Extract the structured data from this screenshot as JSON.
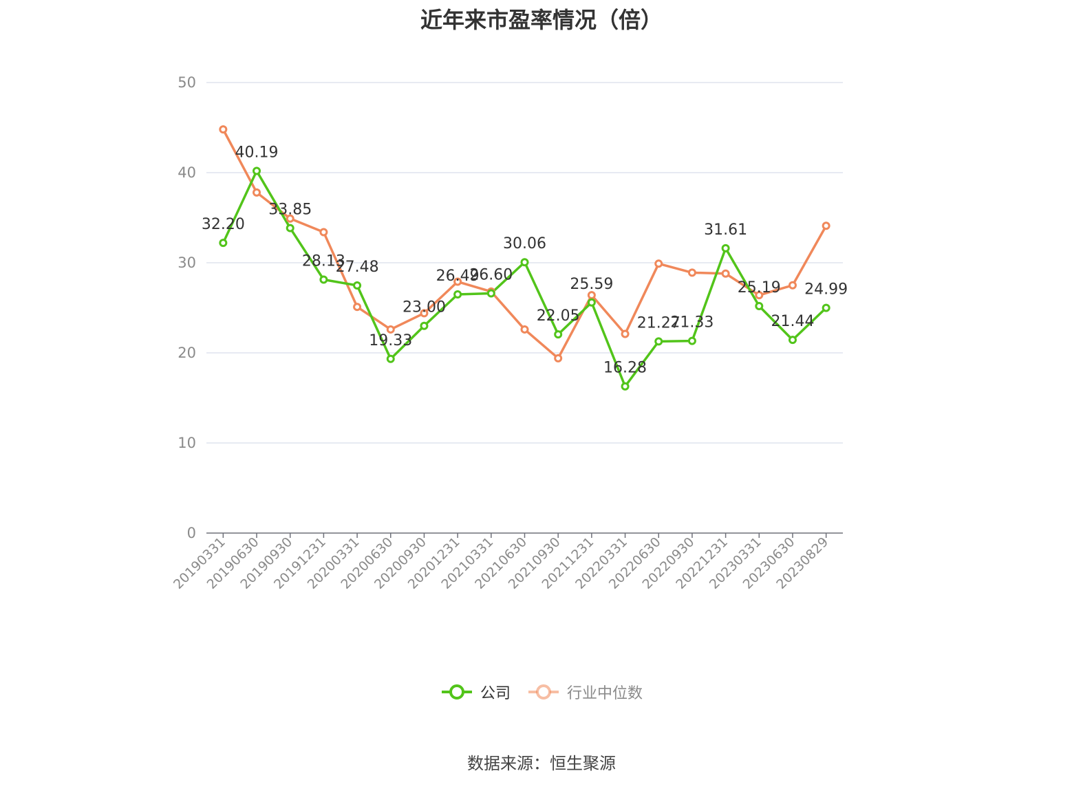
{
  "title": "近年来市盈率情况（倍）",
  "source": "数据来源：恒生聚源",
  "colors": {
    "company": "#52c41a",
    "industry": "#f0885a",
    "grid": "#dfe3ee",
    "axis": "#6e7079"
  },
  "legend": [
    {
      "name": "公司",
      "color": "#52c41a"
    },
    {
      "name": "行业中位数",
      "color": "#f0885a"
    }
  ],
  "chart_data": {
    "type": "line",
    "title": "近年来市盈率情况（倍）",
    "ylim": [
      0,
      50
    ],
    "yticks": [
      0,
      10,
      20,
      30,
      40,
      50
    ],
    "grid": true,
    "legend_position": "bottom",
    "categories": [
      "20190331",
      "20190630",
      "20190930",
      "20191231",
      "20200331",
      "20200630",
      "20200930",
      "20201231",
      "20210331",
      "20210630",
      "20210930",
      "20211231",
      "20220331",
      "20220630",
      "20220930",
      "20221231",
      "20230331",
      "20230630",
      "20230829"
    ],
    "series": [
      {
        "name": "公司",
        "color": "#52c41a",
        "values": [
          32.2,
          40.19,
          33.85,
          28.13,
          27.48,
          19.33,
          23.0,
          26.49,
          26.6,
          30.06,
          22.05,
          25.59,
          16.28,
          21.27,
          21.33,
          31.61,
          25.19,
          21.44,
          24.99
        ],
        "labels": [
          "32.20",
          "40.19",
          "33.85",
          "28.13",
          "27.48",
          "19.33",
          "23.00",
          "26.49",
          "26.60",
          "30.06",
          "22.05",
          "25.59",
          "16.28",
          "21.27",
          "21.33",
          "31.61",
          "25.19",
          "21.44",
          "24.99"
        ]
      },
      {
        "name": "行业中位数",
        "color": "#f0885a",
        "values": [
          44.8,
          37.8,
          34.9,
          33.4,
          25.1,
          22.6,
          24.4,
          27.9,
          26.8,
          22.6,
          19.4,
          26.4,
          22.1,
          29.9,
          28.9,
          28.8,
          26.4,
          27.5,
          34.1
        ]
      }
    ]
  }
}
